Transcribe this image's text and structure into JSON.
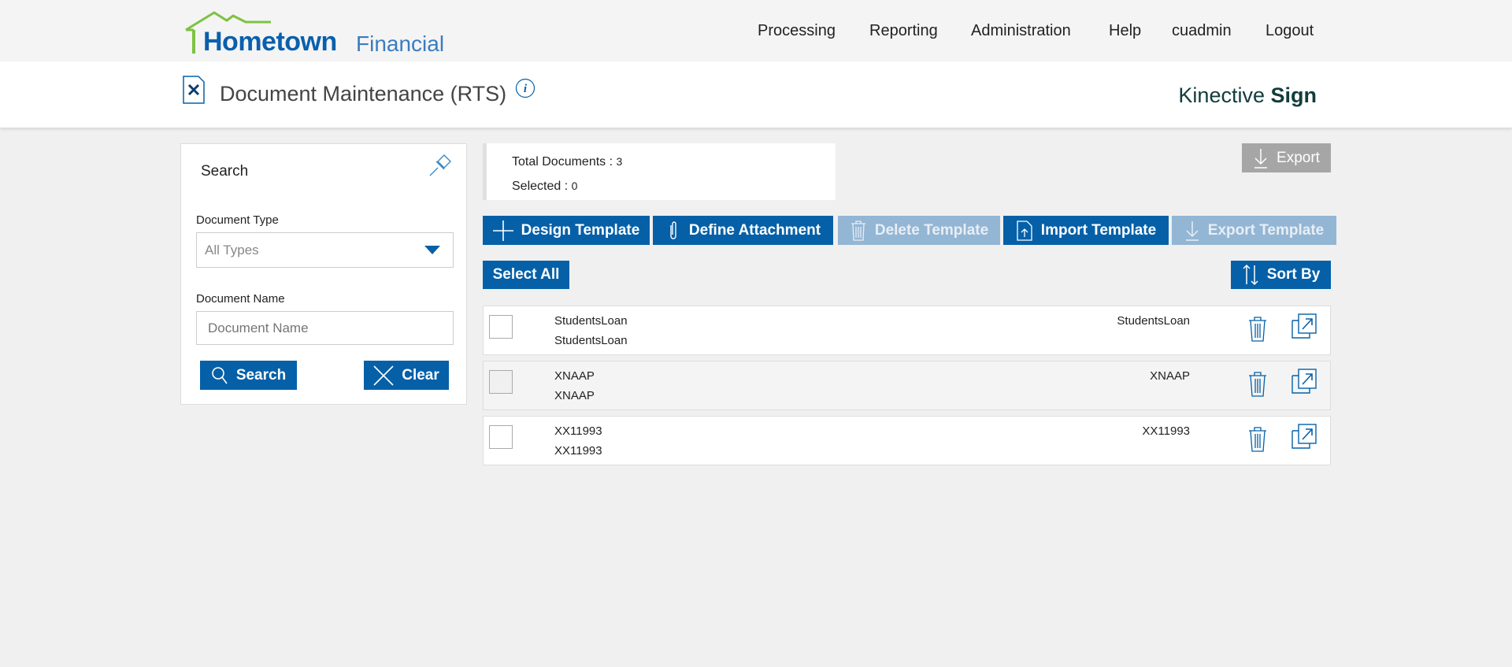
{
  "header": {
    "logo_main": "Hometown",
    "logo_sub": "Financial",
    "nav": [
      "Processing",
      "Reporting",
      "Administration",
      "Help",
      "cuadmin",
      "Logout"
    ]
  },
  "page": {
    "title": "Document Maintenance (RTS)",
    "brand_light": "Kinective",
    "brand_bold": "Sign"
  },
  "search": {
    "title": "Search",
    "doc_type_label": "Document Type",
    "doc_type_value": "All Types",
    "doc_name_label": "Document Name",
    "doc_name_placeholder": "Document Name",
    "search_label": "Search",
    "clear_label": "Clear"
  },
  "stats": {
    "total_label": "Total Documents : ",
    "total": "3",
    "selected_label": "Selected : ",
    "selected": "0"
  },
  "toolbar": {
    "export": "Export",
    "design": "Design Template",
    "define": "Define Attachment",
    "delete": "Delete Template",
    "import": "Import Template",
    "export_template": "Export Template",
    "select_all": "Select All",
    "sort_by": "Sort By"
  },
  "documents": [
    {
      "name": "StudentsLoan",
      "description": "StudentsLoan",
      "type": "StudentsLoan"
    },
    {
      "name": "XNAAP",
      "description": "XNAAP",
      "type": "XNAAP"
    },
    {
      "name": "XX11993",
      "description": "XX11993",
      "type": "XX11993"
    }
  ],
  "colors": {
    "primary": "#0560a8",
    "disabled": "#93b6d4",
    "logo_green": "#7cc242"
  }
}
